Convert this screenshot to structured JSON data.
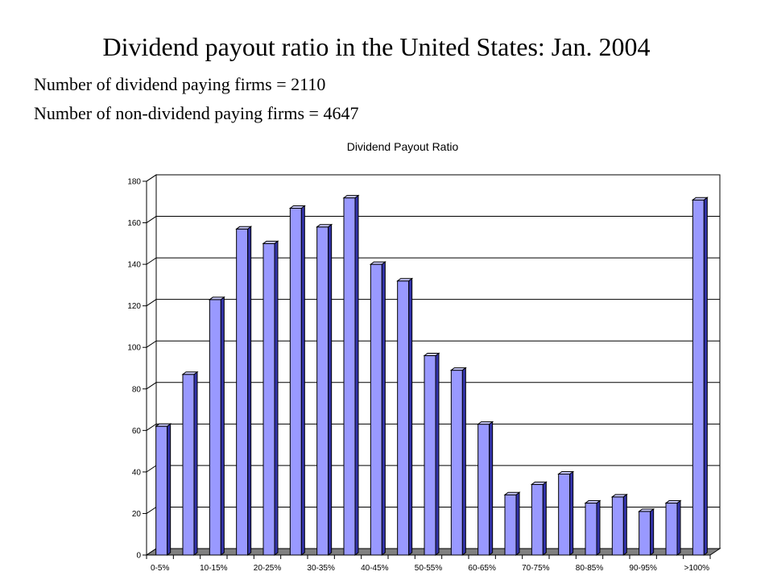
{
  "slide": {
    "title": "Dividend payout ratio in the United States: Jan. 2004",
    "lines": [
      "Number of dividend paying firms = 2110",
      "Number of non-dividend paying firms = 4647"
    ]
  },
  "chart_data": {
    "type": "bar",
    "title": "Dividend Payout Ratio",
    "xlabel": "",
    "ylabel": "",
    "ylim": [
      0,
      180
    ],
    "yticks": [
      0,
      20,
      40,
      60,
      80,
      100,
      120,
      140,
      160,
      180
    ],
    "grid": true,
    "legend": "none",
    "bar_color": "#9999ff",
    "categories": [
      "0-5%",
      "5-10%",
      "10-15%",
      "15-20%",
      "20-25%",
      "25-30%",
      "30-35%",
      "35-40%",
      "40-45%",
      "45-50%",
      "50-55%",
      "55-60%",
      "60-65%",
      "65-70%",
      "70-75%",
      "75-80%",
      "80-85%",
      "85-90%",
      "90-95%",
      "95-100%",
      ">100%"
    ],
    "tick_labels_shown": [
      "0-5%",
      "10-15%",
      "20-25%",
      "30-35%",
      "40-45%",
      "50-55%",
      "60-65%",
      "70-75%",
      "80-85%",
      "90-95%",
      ">100%"
    ],
    "values": [
      62,
      87,
      123,
      157,
      150,
      167,
      158,
      172,
      140,
      132,
      96,
      89,
      63,
      29,
      34,
      39,
      25,
      28,
      21,
      25,
      171
    ]
  }
}
